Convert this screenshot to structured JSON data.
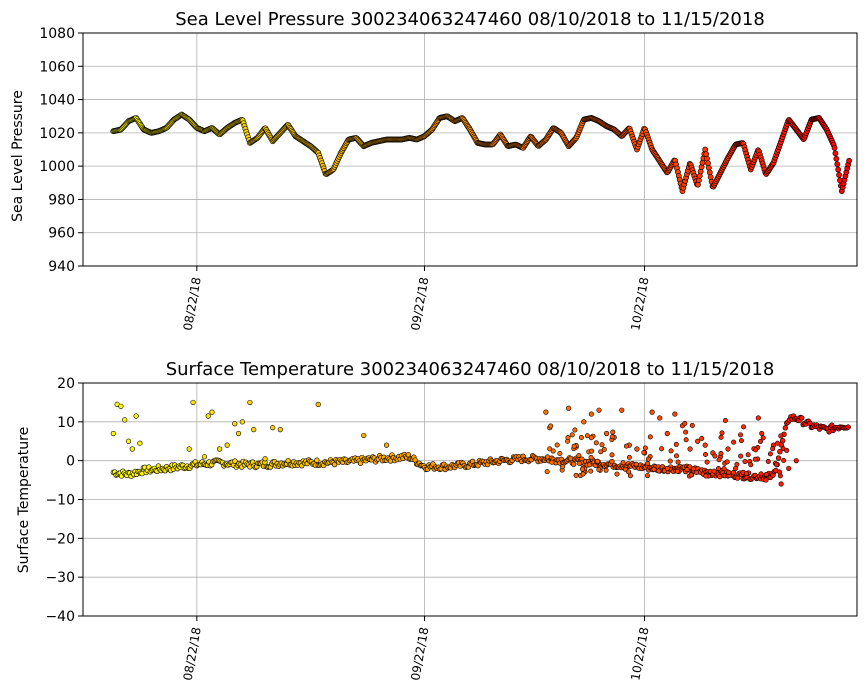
{
  "chart_data": [
    {
      "type": "scatter",
      "title": "Sea Level Pressure 300234063247460  08/10/2018 to 11/15/2018",
      "xlabel": "",
      "ylabel": "Sea Level Pressure",
      "ylim": [
        940,
        1080
      ],
      "yticks": [
        "940",
        "960",
        "980",
        "1000",
        "1020",
        "1040",
        "1060",
        "1080"
      ],
      "xlim": [
        -3,
        99
      ],
      "xticks": [
        {
          "day": 12,
          "label": "08/22/18"
        },
        {
          "day": 42,
          "label": "09/22/18"
        },
        {
          "day": 71,
          "label": "10/22/18"
        }
      ],
      "grid": true,
      "color_scale": [
        "#ffff00",
        "#ff8c00",
        "#ff0000"
      ],
      "series_key": [
        [
          1,
          1021
        ],
        [
          2,
          1022
        ],
        [
          3,
          1027
        ],
        [
          4,
          1029
        ],
        [
          5,
          1022
        ],
        [
          6,
          1020
        ],
        [
          7,
          1021
        ],
        [
          8,
          1023
        ],
        [
          9,
          1028
        ],
        [
          10,
          1031
        ],
        [
          11,
          1028
        ],
        [
          12,
          1023
        ],
        [
          13,
          1021
        ],
        [
          14,
          1023
        ],
        [
          15,
          1019
        ],
        [
          16,
          1023
        ],
        [
          17,
          1026
        ],
        [
          18,
          1028
        ],
        [
          19,
          1014
        ],
        [
          20,
          1017
        ],
        [
          21,
          1023
        ],
        [
          22,
          1015
        ],
        [
          23,
          1020
        ],
        [
          24,
          1025
        ],
        [
          25,
          1018
        ],
        [
          26,
          1015
        ],
        [
          27,
          1012
        ],
        [
          28,
          1008
        ],
        [
          29,
          995
        ],
        [
          30,
          998
        ],
        [
          31,
          1008
        ],
        [
          32,
          1016
        ],
        [
          33,
          1017
        ],
        [
          34,
          1012
        ],
        [
          35,
          1014
        ],
        [
          36,
          1015
        ],
        [
          37,
          1016
        ],
        [
          38,
          1016
        ],
        [
          39,
          1016
        ],
        [
          40,
          1017
        ],
        [
          41,
          1016
        ],
        [
          42,
          1018
        ],
        [
          43,
          1022
        ],
        [
          44,
          1029
        ],
        [
          45,
          1030
        ],
        [
          46,
          1027
        ],
        [
          47,
          1029
        ],
        [
          48,
          1022
        ],
        [
          49,
          1014
        ],
        [
          50,
          1013
        ],
        [
          51,
          1013
        ],
        [
          52,
          1019
        ],
        [
          53,
          1012
        ],
        [
          54,
          1013
        ],
        [
          55,
          1011
        ],
        [
          56,
          1018
        ],
        [
          57,
          1012
        ],
        [
          58,
          1016
        ],
        [
          59,
          1023
        ],
        [
          60,
          1020
        ],
        [
          61,
          1012
        ],
        [
          62,
          1017
        ],
        [
          63,
          1028
        ],
        [
          64,
          1029
        ],
        [
          65,
          1027
        ],
        [
          66,
          1024
        ],
        [
          67,
          1022
        ],
        [
          68,
          1018
        ],
        [
          69,
          1023
        ],
        [
          70,
          1010
        ],
        [
          71,
          1023
        ],
        [
          72,
          1010
        ],
        [
          73,
          1003
        ],
        [
          74,
          996
        ],
        [
          75,
          1004
        ],
        [
          76,
          985
        ],
        [
          77,
          1002
        ],
        [
          78,
          988
        ],
        [
          79,
          1010
        ],
        [
          80,
          987
        ],
        [
          81,
          996
        ],
        [
          82,
          1005
        ],
        [
          83,
          1013
        ],
        [
          84,
          1014
        ],
        [
          85,
          998
        ],
        [
          86,
          1010
        ],
        [
          87,
          995
        ],
        [
          88,
          1002
        ],
        [
          89,
          1015
        ],
        [
          90,
          1028
        ],
        [
          91,
          1022
        ],
        [
          92,
          1016
        ],
        [
          93,
          1028
        ],
        [
          94,
          1029
        ],
        [
          95,
          1022
        ],
        [
          96,
          1012
        ],
        [
          97,
          985
        ],
        [
          98,
          1004
        ]
      ]
    },
    {
      "type": "scatter",
      "title": "Surface Temperature 300234063247460  08/10/2018 to 11/15/2018",
      "xlabel": "",
      "ylabel": "Surface Temperature",
      "ylim": [
        -40,
        20
      ],
      "yticks": [
        "−40",
        "−30",
        "−20",
        "−10",
        "0",
        "10",
        "20"
      ],
      "xlim": [
        -3,
        99
      ],
      "xticks": [
        {
          "day": 12,
          "label": "08/22/18"
        },
        {
          "day": 42,
          "label": "09/22/18"
        },
        {
          "day": 71,
          "label": "10/22/18"
        }
      ],
      "grid": true,
      "color_scale": [
        "#ffff00",
        "#ff8c00",
        "#ff0000"
      ],
      "baseline": [
        [
          1,
          -3
        ],
        [
          3,
          -3.5
        ],
        [
          5,
          -2.5
        ],
        [
          8,
          -2
        ],
        [
          10,
          -1.5
        ],
        [
          12,
          -1
        ],
        [
          15,
          -0.5
        ],
        [
          18,
          -1
        ],
        [
          21,
          -1
        ],
        [
          24,
          -0.5
        ],
        [
          28,
          -0.5
        ],
        [
          32,
          -0.3
        ],
        [
          36,
          0.5
        ],
        [
          40,
          1
        ],
        [
          42,
          -1.5
        ],
        [
          45,
          -1.5
        ],
        [
          48,
          -1
        ],
        [
          52,
          0
        ],
        [
          55,
          0.5
        ],
        [
          58,
          0.5
        ],
        [
          61,
          0
        ],
        [
          64,
          -0.5
        ],
        [
          67,
          -1
        ],
        [
          70,
          -1.5
        ],
        [
          73,
          -2
        ],
        [
          76,
          -2
        ],
        [
          79,
          -3
        ],
        [
          82,
          -3.5
        ],
        [
          85,
          -4
        ],
        [
          88,
          -4
        ],
        [
          90,
          11
        ],
        [
          91,
          11
        ],
        [
          93,
          9
        ],
        [
          95,
          8
        ],
        [
          97,
          9
        ],
        [
          98,
          9
        ]
      ],
      "scatter_points": [
        [
          1,
          7
        ],
        [
          1.5,
          14.5
        ],
        [
          2,
          14
        ],
        [
          2.5,
          10.5
        ],
        [
          3,
          5
        ],
        [
          3.5,
          3
        ],
        [
          4,
          11.5
        ],
        [
          4.5,
          4.5
        ],
        [
          11,
          3
        ],
        [
          11.5,
          15
        ],
        [
          13,
          1
        ],
        [
          13.5,
          11.5
        ],
        [
          14,
          12.5
        ],
        [
          15,
          3
        ],
        [
          16,
          4
        ],
        [
          17,
          9.5
        ],
        [
          17.5,
          7
        ],
        [
          18,
          10
        ],
        [
          19,
          15
        ],
        [
          19.5,
          8
        ],
        [
          21,
          0.5
        ],
        [
          22,
          8.5
        ],
        [
          23,
          8
        ],
        [
          28,
          14.5
        ],
        [
          34,
          6.5
        ],
        [
          37,
          4
        ],
        [
          58,
          12.5
        ],
        [
          58.5,
          8.5
        ],
        [
          61,
          13.5
        ],
        [
          62,
          3.5
        ],
        [
          63,
          10
        ],
        [
          64,
          12
        ],
        [
          65,
          13
        ],
        [
          66,
          7
        ],
        [
          67,
          6
        ],
        [
          68,
          13
        ],
        [
          69,
          4
        ],
        [
          70,
          3
        ],
        [
          71,
          2
        ],
        [
          72,
          12.5
        ],
        [
          73,
          11
        ],
        [
          74,
          7
        ],
        [
          75,
          12
        ],
        [
          76,
          9
        ],
        [
          77,
          3
        ],
        [
          78,
          5
        ],
        [
          79,
          4
        ],
        [
          80,
          2
        ],
        [
          81,
          1
        ],
        [
          82,
          3
        ],
        [
          83,
          -2
        ],
        [
          84,
          -3
        ],
        [
          86,
          11
        ],
        [
          87,
          -5
        ],
        [
          88,
          4
        ],
        [
          89,
          -6
        ],
        [
          90,
          -2
        ],
        [
          91,
          0
        ]
      ]
    }
  ]
}
